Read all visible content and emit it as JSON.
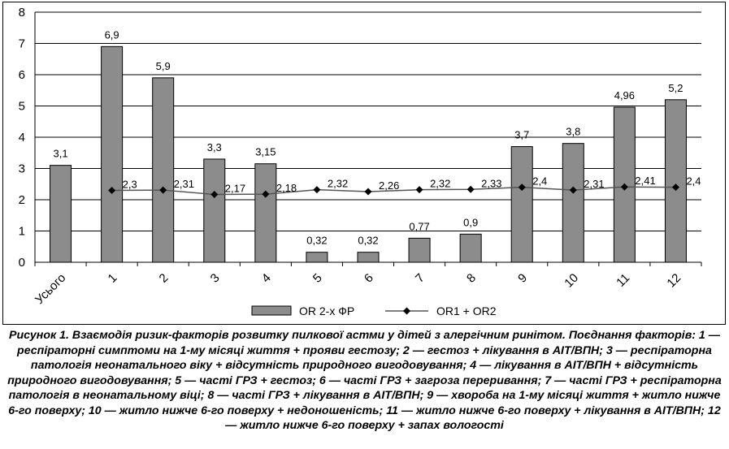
{
  "chart_data": {
    "type": "bar",
    "categories": [
      "Усього",
      "1",
      "2",
      "3",
      "4",
      "5",
      "6",
      "7",
      "8",
      "9",
      "10",
      "11",
      "12"
    ],
    "ylim": [
      0,
      8
    ],
    "yticks": [
      0,
      1,
      2,
      3,
      4,
      5,
      6,
      7,
      8
    ],
    "grid": true,
    "legend_position": "bottom",
    "series": [
      {
        "name": "OR 2-х ФР",
        "type": "bar",
        "values": [
          3.1,
          6.9,
          5.9,
          3.3,
          3.15,
          0.32,
          0.32,
          0.77,
          0.9,
          3.7,
          3.8,
          4.96,
          5.2
        ],
        "labels": [
          "3,1",
          "6,9",
          "5,9",
          "3,3",
          "3,15",
          "0,32",
          "0,32",
          "0,77",
          "0,9",
          "3,7",
          "3,8",
          "4,96",
          "5,2"
        ],
        "color": "#8c8c8c"
      },
      {
        "name": "OR1 + OR2",
        "type": "line",
        "values": [
          null,
          2.3,
          2.31,
          2.17,
          2.18,
          2.32,
          2.26,
          2.32,
          2.33,
          2.4,
          2.31,
          2.41,
          2.4
        ],
        "labels": [
          "",
          "2,3",
          "2,31",
          "2,17",
          "2,18",
          "2,32",
          "2,26",
          "2,32",
          "2,33",
          "2,4",
          "2,31",
          "2,41",
          "2,4"
        ],
        "color": "#555555"
      }
    ]
  },
  "caption": {
    "text": "Рисунок 1. Взаємодія ризик-факторів розвитку пилкової астми у дітей з алергічним ринітом. Поєднання факторів: 1 — респіраторні симптоми на 1-му місяці життя + прояви гестозу; 2 — гестоз + лікування в АІТ/ВПН; 3 — респіраторна патологія неонатального віку + відсутність природного вигодовування; 4 — лікування в АІТ/ВПН + відсутність природного вигодовування; 5 — часті ГРЗ + гестоз; 6 — часті ГРЗ + загроза переривання; 7 — часті ГРЗ + респіраторна патологія в неонатальному віці; 8 — часті ГРЗ + лікування в АІТ/ВПН; 9 — хвороба на 1-му місяці життя + житло нижче 6-го поверху; 10 — житло нижче 6-го поверху + недоношеність; 11 — житло нижче 6-го поверху + лікування в АІТ/ВПН; 12 — житло нижче 6-го поверху + запах вологості"
  }
}
